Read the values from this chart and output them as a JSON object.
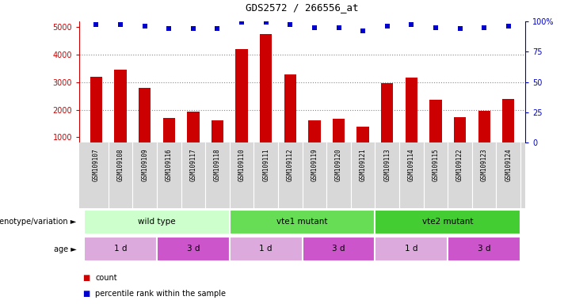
{
  "title": "GDS2572 / 266556_at",
  "samples": [
    "GSM109107",
    "GSM109108",
    "GSM109109",
    "GSM109116",
    "GSM109117",
    "GSM109118",
    "GSM109110",
    "GSM109111",
    "GSM109112",
    "GSM109119",
    "GSM109120",
    "GSM109121",
    "GSM109113",
    "GSM109114",
    "GSM109115",
    "GSM109122",
    "GSM109123",
    "GSM109124"
  ],
  "counts": [
    3180,
    3450,
    2800,
    1700,
    1930,
    1630,
    4180,
    4750,
    3290,
    1620,
    1680,
    1380,
    2960,
    3160,
    2370,
    1740,
    1950,
    2380
  ],
  "percentile_ranks": [
    97,
    97,
    96,
    94,
    94,
    94,
    99,
    99,
    97,
    95,
    95,
    92,
    96,
    97,
    95,
    94,
    95,
    96
  ],
  "ylim_left": [
    800,
    5200
  ],
  "ylim_right": [
    0,
    100
  ],
  "yticks_left": [
    1000,
    2000,
    3000,
    4000,
    5000
  ],
  "yticks_right": [
    0,
    25,
    50,
    75,
    100
  ],
  "bar_color": "#cc0000",
  "scatter_color": "#0000cc",
  "genotype_groups": [
    {
      "label": "wild type",
      "start": 0,
      "end": 6,
      "color": "#ccffcc"
    },
    {
      "label": "vte1 mutant",
      "start": 6,
      "end": 12,
      "color": "#66dd55"
    },
    {
      "label": "vte2 mutant",
      "start": 12,
      "end": 18,
      "color": "#44cc33"
    }
  ],
  "age_groups": [
    {
      "label": "1 d",
      "start": 0,
      "end": 3,
      "color": "#ddaadd"
    },
    {
      "label": "3 d",
      "start": 3,
      "end": 6,
      "color": "#cc55cc"
    },
    {
      "label": "1 d",
      "start": 6,
      "end": 9,
      "color": "#ddaadd"
    },
    {
      "label": "3 d",
      "start": 9,
      "end": 12,
      "color": "#cc55cc"
    },
    {
      "label": "1 d",
      "start": 12,
      "end": 15,
      "color": "#ddaadd"
    },
    {
      "label": "3 d",
      "start": 15,
      "end": 18,
      "color": "#cc55cc"
    }
  ],
  "legend_count_color": "#cc0000",
  "legend_percentile_color": "#0000cc",
  "xlabel_genotype": "genotype/variation",
  "xlabel_age": "age",
  "grid_color": "#888888",
  "bar_width": 0.5,
  "tick_label_bg": "#d8d8d8",
  "n_samples": 18
}
